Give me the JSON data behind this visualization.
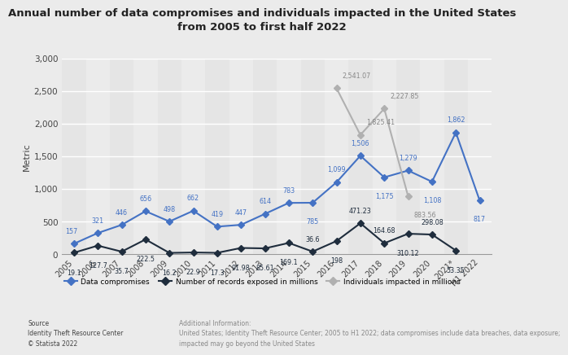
{
  "title": "Annual number of data compromises and individuals impacted in the United States\nfrom 2005 to first half 2022",
  "ylabel": "Metric",
  "background_color": "#ebebeb",
  "plot_background_color": "#ebebeb",
  "years": [
    "2005",
    "2006",
    "2007",
    "2008",
    "2009",
    "2010",
    "2011",
    "2012",
    "2013",
    "2014",
    "2015",
    "2016",
    "2017",
    "2018",
    "2019",
    "2020",
    "2021*",
    "H1 2022"
  ],
  "data_compromises": [
    157,
    321,
    446,
    656,
    498,
    662,
    419,
    447,
    614,
    783,
    785,
    1099,
    1506,
    1175,
    1279,
    1108,
    1862,
    817
  ],
  "records_exposed": [
    19.1,
    127.7,
    35.7,
    222.5,
    16.2,
    22.9,
    17.3,
    91.98,
    85.61,
    169.1,
    36.6,
    198,
    471.23,
    164.68,
    310.12,
    298.08,
    53.35,
    null
  ],
  "individuals_impacted": [
    null,
    null,
    null,
    null,
    null,
    null,
    null,
    null,
    null,
    null,
    null,
    2541.07,
    1825.41,
    2227.85,
    883.56,
    null,
    null,
    null
  ],
  "dc_color": "#4472c4",
  "re_color": "#1f2d3d",
  "ii_color": "#b0b0b0",
  "dc_label": "Data compromises",
  "re_label": "Number of records exposed in millions",
  "ii_label": "Individuals impacted in millions",
  "ylim": [
    0,
    3000
  ],
  "yticks": [
    0,
    500,
    1000,
    1500,
    2000,
    2500,
    3000
  ],
  "source_text": "Source\nIdentity Theft Resource Center\n© Statista 2022",
  "add_info_text": "Additional Information:\nUnited States; Identity Theft Resource Center; 2005 to H1 2022; data compromises include data breaches, data exposure;\nimpacted may go beyond the United States"
}
